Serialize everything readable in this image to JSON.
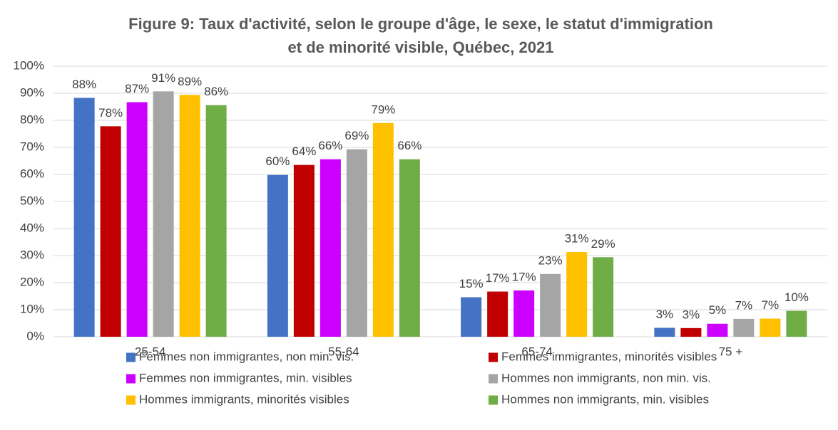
{
  "chart_data": {
    "type": "bar",
    "title": [
      "Figure 9: Taux d'activité, selon le groupe d'âge, le sexe, le statut d'immigration",
      "et de minorité visible, Québec, 2021"
    ],
    "categories": [
      "25-54",
      "55-64",
      "65-74",
      "75 +"
    ],
    "series": [
      {
        "name": "Femmes non immigrantes, non min. vis.",
        "color": "#4472c4",
        "values": [
          88.3,
          59.8,
          14.6,
          3.3
        ],
        "value_labels": [
          "88%",
          "60%",
          "15%",
          "3%"
        ]
      },
      {
        "name": "Femmes immigrantes, minorités visibles",
        "color": "#c00000",
        "values": [
          77.8,
          63.5,
          16.7,
          3.2
        ],
        "value_labels": [
          "78%",
          "64%",
          "17%",
          "3%"
        ]
      },
      {
        "name": "Femmes non immigrantes, min. visibles",
        "color": "#cc00ff",
        "values": [
          86.7,
          65.6,
          17.1,
          4.8
        ],
        "value_labels": [
          "87%",
          "66%",
          "17%",
          "5%"
        ]
      },
      {
        "name": "Hommes non immigrants, non min. vis.",
        "color": "#a5a5a5",
        "values": [
          90.7,
          69.3,
          23.2,
          6.6
        ],
        "value_labels": [
          "91%",
          "69%",
          "23%",
          "7%"
        ]
      },
      {
        "name": "Hommes immigrants, minorités visibles",
        "color": "#ffc000",
        "values": [
          89.4,
          79.0,
          31.3,
          6.7
        ],
        "value_labels": [
          "89%",
          "79%",
          "31%",
          "7%"
        ]
      },
      {
        "name": "Hommes non immigrants, min. visibles",
        "color": "#70ad47",
        "values": [
          85.6,
          65.6,
          29.4,
          9.6
        ],
        "value_labels": [
          "86%",
          "66%",
          "29%",
          "10%"
        ]
      }
    ],
    "ylim": [
      0,
      100
    ],
    "yticks": [
      {
        "value": 0,
        "label": "0%"
      },
      {
        "value": 10,
        "label": "10%"
      },
      {
        "value": 20,
        "label": "20%"
      },
      {
        "value": 30,
        "label": "30%"
      },
      {
        "value": 40,
        "label": "40%"
      },
      {
        "value": 50,
        "label": "50%"
      },
      {
        "value": 60,
        "label": "60%"
      },
      {
        "value": 70,
        "label": "70%"
      },
      {
        "value": 80,
        "label": "80%"
      },
      {
        "value": 90,
        "label": "90%"
      },
      {
        "value": 100,
        "label": "100%"
      }
    ],
    "grid": true
  }
}
